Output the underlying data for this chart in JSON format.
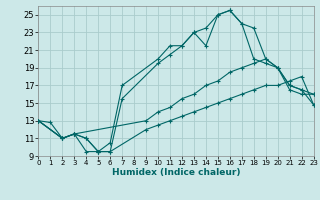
{
  "background_color": "#cce8e8",
  "grid_color": "#aacccc",
  "line_color": "#006666",
  "xlabel": "Humidex (Indice chaleur)",
  "xlim": [
    0,
    23
  ],
  "ylim": [
    9,
    26
  ],
  "yticks": [
    9,
    11,
    13,
    15,
    17,
    19,
    21,
    23,
    25
  ],
  "xticks": [
    0,
    1,
    2,
    3,
    4,
    5,
    6,
    7,
    8,
    9,
    10,
    11,
    12,
    13,
    14,
    15,
    16,
    17,
    18,
    19,
    20,
    21,
    22,
    23
  ],
  "lines": [
    {
      "x": [
        0,
        2,
        3,
        4,
        5,
        6,
        9,
        10,
        11,
        12,
        13,
        14,
        15,
        16,
        17,
        18,
        19,
        20,
        21,
        22,
        23
      ],
      "y": [
        13,
        11,
        11.5,
        11,
        9.5,
        9.5,
        12,
        12.5,
        13,
        13.5,
        14,
        14.5,
        15,
        15.5,
        16,
        16.5,
        17,
        17,
        17.5,
        18,
        14.8
      ]
    },
    {
      "x": [
        0,
        1,
        2,
        3,
        4,
        5,
        6,
        7,
        10,
        11,
        12,
        13,
        14,
        15,
        16,
        17,
        18,
        19,
        20,
        21,
        22,
        23
      ],
      "y": [
        13,
        12.8,
        11,
        11.5,
        9.5,
        9.5,
        10.5,
        17,
        20,
        21.5,
        21.5,
        23,
        21.5,
        25,
        25.5,
        24,
        20,
        19.5,
        19,
        17,
        16.5,
        16
      ]
    },
    {
      "x": [
        0,
        2,
        3,
        4,
        5,
        6,
        7,
        10,
        11,
        12,
        13,
        14,
        15,
        16,
        17,
        18,
        19,
        20,
        21,
        22,
        23
      ],
      "y": [
        13,
        11,
        11.5,
        11,
        9.5,
        9.5,
        15.5,
        19.5,
        20.5,
        21.5,
        23,
        23.5,
        25,
        25.5,
        24,
        23.5,
        20,
        19,
        16.5,
        16,
        16
      ]
    },
    {
      "x": [
        0,
        2,
        3,
        9,
        10,
        11,
        12,
        13,
        14,
        15,
        16,
        17,
        18,
        19,
        20,
        21,
        22,
        23
      ],
      "y": [
        13,
        11,
        11.5,
        13,
        14,
        14.5,
        15.5,
        16,
        17,
        17.5,
        18.5,
        19,
        19.5,
        20,
        19,
        17,
        16.5,
        14.8
      ]
    }
  ]
}
